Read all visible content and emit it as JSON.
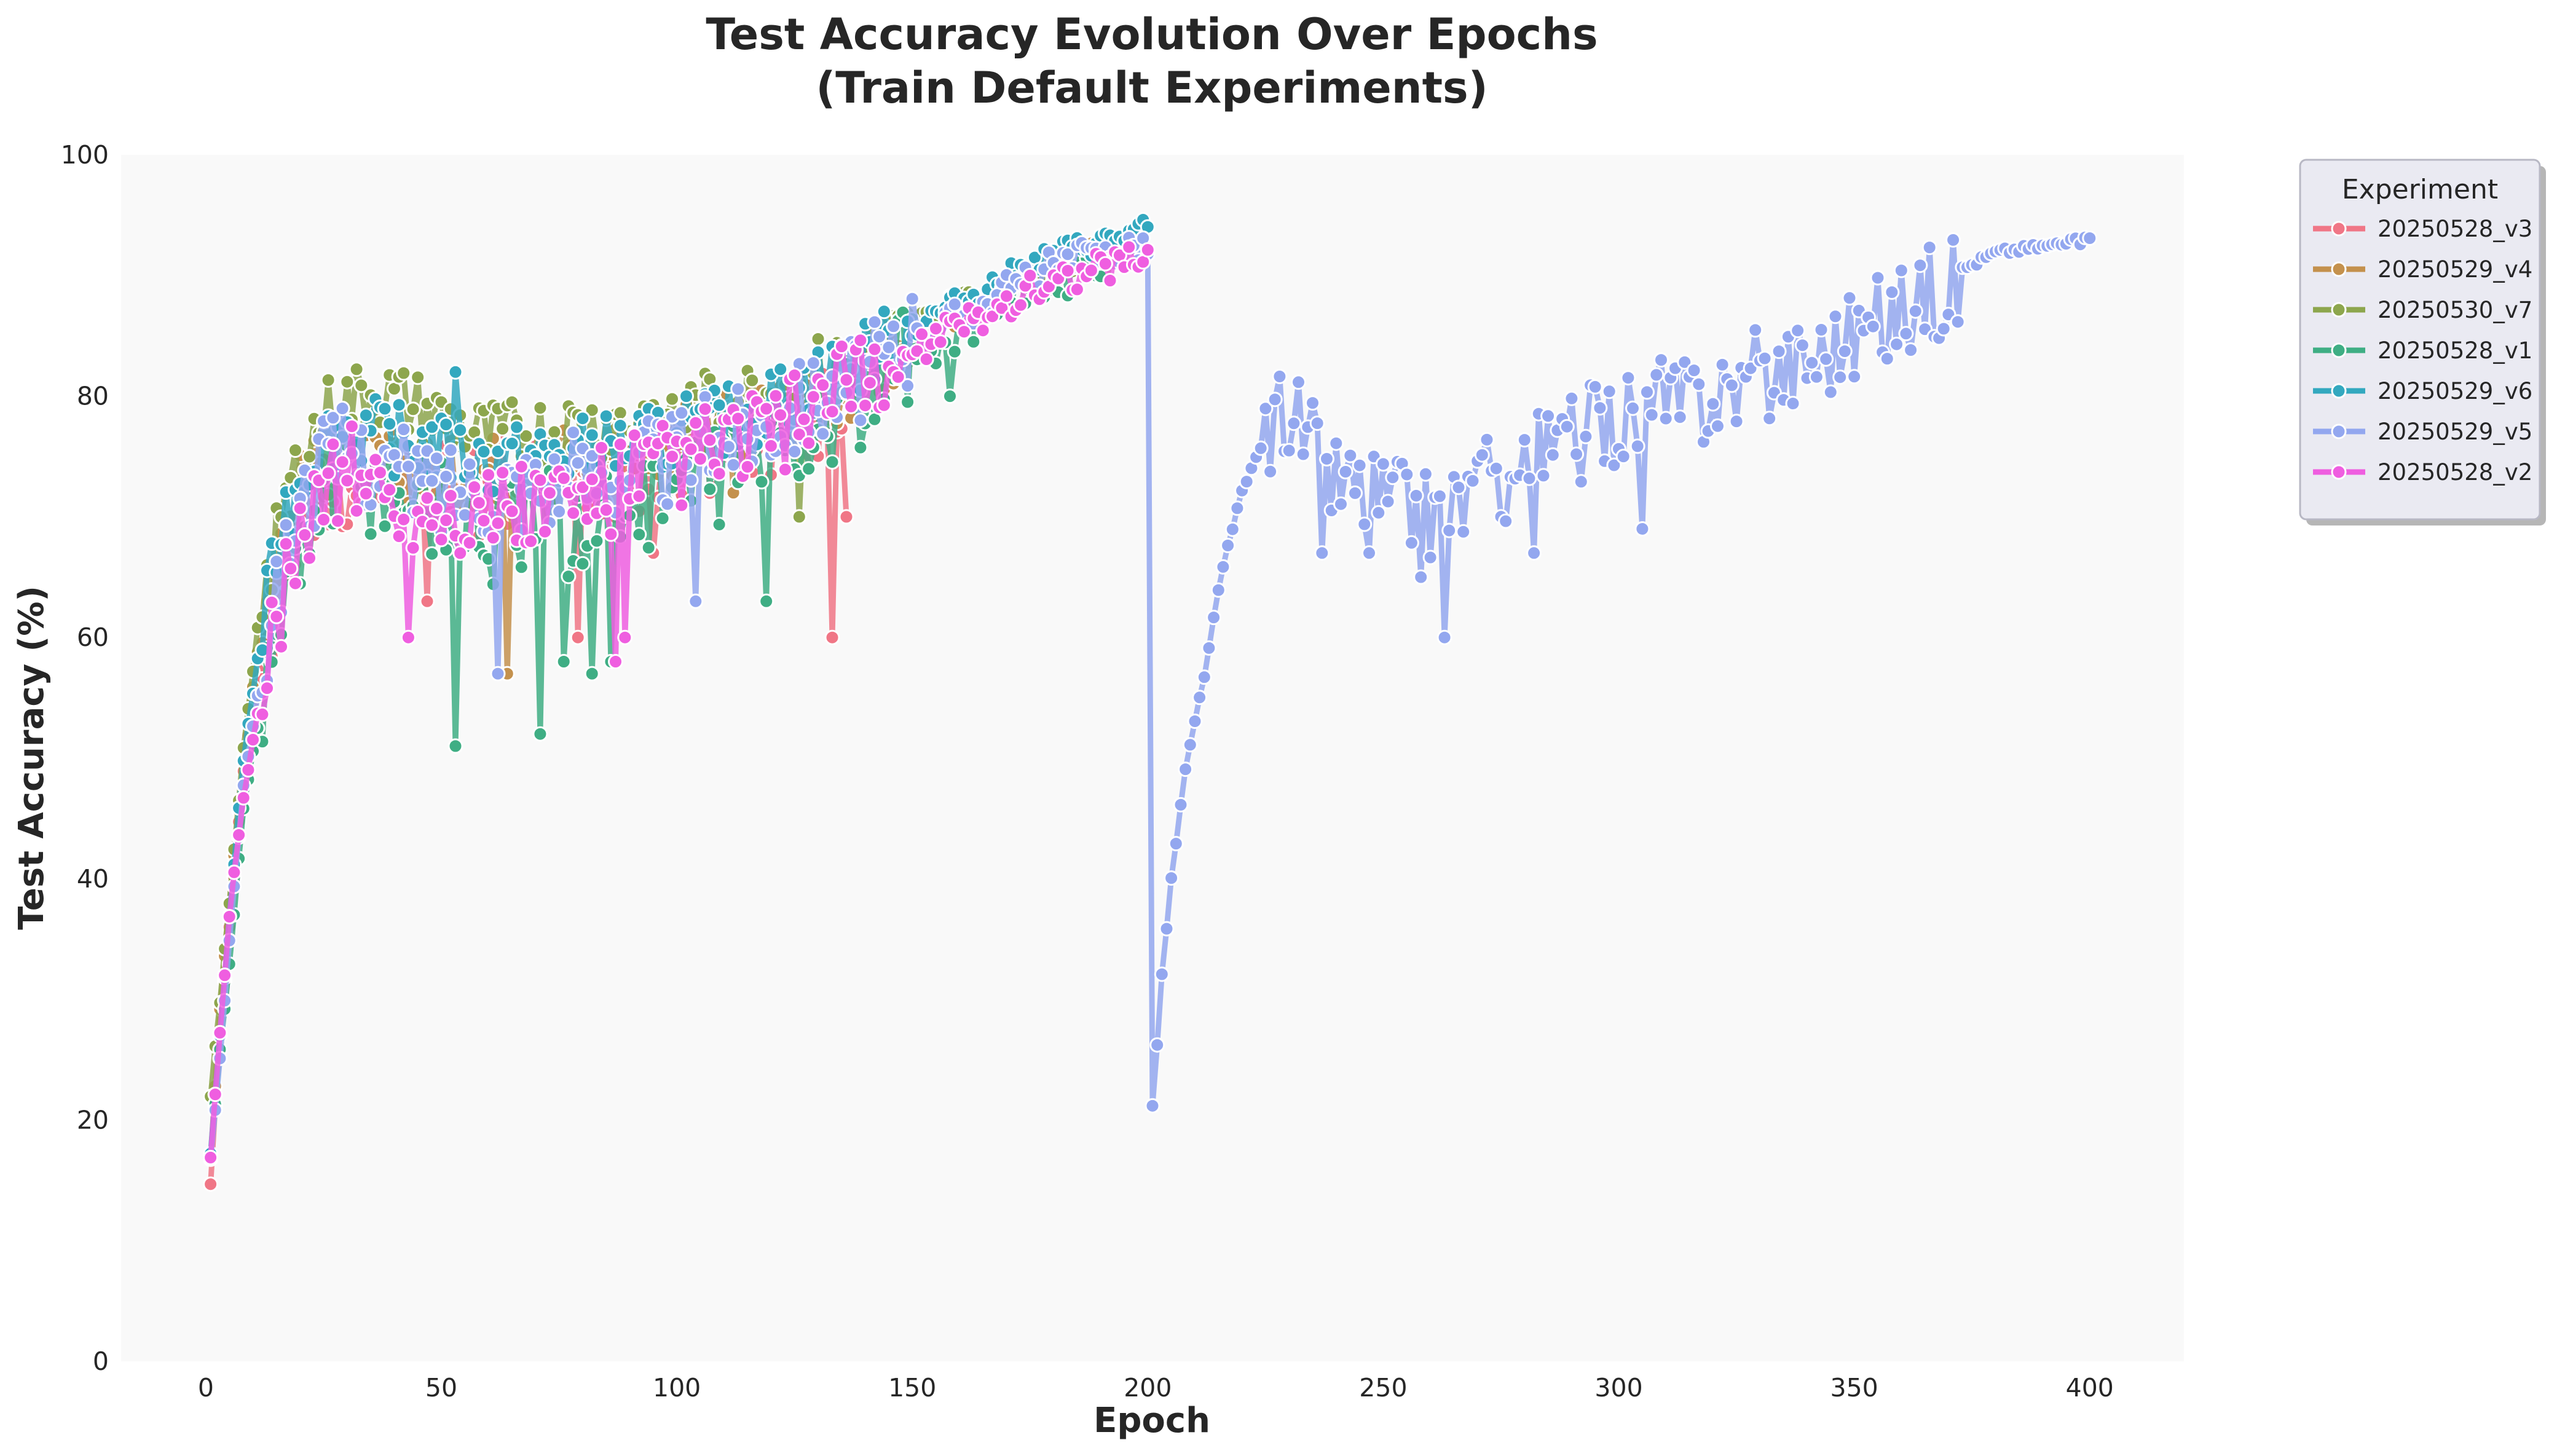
{
  "chart_data": {
    "type": "line",
    "title_line1": "Test Accuracy Evolution Over Epochs",
    "title_line2": "(Train Default Experiments)",
    "xlabel": "Epoch",
    "ylabel": "Test Accuracy (%)",
    "xlim": [
      -18,
      420
    ],
    "ylim": [
      0,
      100
    ],
    "xticks": [
      0,
      50,
      100,
      150,
      200,
      250,
      300,
      350,
      400
    ],
    "yticks": [
      0,
      20,
      40,
      60,
      80,
      100
    ],
    "grid": false,
    "legend_title": "Experiment",
    "legend_position": "outside-top-right",
    "markers": "circle",
    "series": [
      {
        "name": "20250528_v3",
        "color": "#f07686",
        "epochs": 136,
        "anchors": [
          [
            1,
            15
          ],
          [
            3,
            27
          ],
          [
            5,
            36
          ],
          [
            8,
            49
          ],
          [
            12,
            60
          ],
          [
            16,
            66
          ],
          [
            20,
            70
          ],
          [
            25,
            73
          ],
          [
            30,
            74
          ],
          [
            40,
            74
          ],
          [
            60,
            73
          ],
          [
            80,
            74
          ],
          [
            100,
            76
          ],
          [
            120,
            78
          ],
          [
            136,
            80
          ]
        ],
        "spread": 8,
        "dips": [
          [
            47,
            63
          ],
          [
            79,
            60
          ],
          [
            95,
            67
          ],
          [
            133,
            60
          ],
          [
            136,
            70
          ]
        ]
      },
      {
        "name": "20250529_v4",
        "color": "#c4914d",
        "epochs": 196,
        "anchors": [
          [
            1,
            17
          ],
          [
            3,
            29
          ],
          [
            5,
            38
          ],
          [
            8,
            50
          ],
          [
            12,
            62
          ],
          [
            16,
            69
          ],
          [
            20,
            73
          ],
          [
            25,
            75
          ],
          [
            30,
            76
          ],
          [
            50,
            74
          ],
          [
            80,
            76
          ],
          [
            100,
            77
          ],
          [
            120,
            79
          ],
          [
            140,
            82
          ],
          [
            160,
            87
          ],
          [
            180,
            91
          ],
          [
            196,
            93
          ]
        ],
        "spread": 6,
        "dips": [
          [
            64,
            57
          ],
          [
            112,
            72
          ]
        ]
      },
      {
        "name": "20250530_v7",
        "color": "#8da64d",
        "epochs": 196,
        "anchors": [
          [
            1,
            22
          ],
          [
            3,
            30
          ],
          [
            5,
            38
          ],
          [
            8,
            51
          ],
          [
            12,
            64
          ],
          [
            16,
            71
          ],
          [
            20,
            75
          ],
          [
            25,
            79
          ],
          [
            30,
            80
          ],
          [
            36,
            81
          ],
          [
            60,
            77
          ],
          [
            80,
            78
          ],
          [
            100,
            79
          ],
          [
            120,
            81
          ],
          [
            140,
            84
          ],
          [
            160,
            88
          ],
          [
            180,
            91
          ],
          [
            196,
            92
          ]
        ],
        "spread": 6,
        "dips": [
          [
            126,
            70
          ]
        ]
      },
      {
        "name": "20250528_v1",
        "color": "#3fae84",
        "epochs": 196,
        "anchors": [
          [
            1,
            17
          ],
          [
            3,
            26
          ],
          [
            5,
            33
          ],
          [
            8,
            46
          ],
          [
            12,
            55
          ],
          [
            16,
            63
          ],
          [
            20,
            68
          ],
          [
            25,
            74
          ],
          [
            30,
            75
          ],
          [
            40,
            74
          ],
          [
            60,
            70
          ],
          [
            80,
            71
          ],
          [
            100,
            74
          ],
          [
            120,
            77
          ],
          [
            140,
            81
          ],
          [
            160,
            86
          ],
          [
            180,
            90
          ],
          [
            196,
            92
          ]
        ],
        "spread": 10,
        "dips": [
          [
            53,
            51
          ],
          [
            71,
            52
          ],
          [
            82,
            57
          ],
          [
            76,
            58
          ],
          [
            86,
            58
          ],
          [
            119,
            63
          ],
          [
            158,
            80
          ]
        ]
      },
      {
        "name": "20250529_v6",
        "color": "#33a8bf",
        "epochs": 200,
        "anchors": [
          [
            1,
            17
          ],
          [
            3,
            27
          ],
          [
            5,
            37
          ],
          [
            8,
            50
          ],
          [
            12,
            61
          ],
          [
            16,
            70
          ],
          [
            20,
            74
          ],
          [
            25,
            77
          ],
          [
            30,
            78
          ],
          [
            40,
            77
          ],
          [
            60,
            75
          ],
          [
            80,
            76
          ],
          [
            100,
            77
          ],
          [
            120,
            80
          ],
          [
            140,
            84
          ],
          [
            160,
            88
          ],
          [
            180,
            92
          ],
          [
            200,
            94
          ]
        ],
        "spread": 6,
        "dips": [
          [
            53,
            82
          ],
          [
            102,
            80
          ]
        ]
      },
      {
        "name": "20250529_v5",
        "color": "#93a7ef",
        "epochs": 400,
        "anchors": [
          [
            1,
            17
          ],
          [
            3,
            25
          ],
          [
            5,
            35
          ],
          [
            8,
            48
          ],
          [
            12,
            58
          ],
          [
            16,
            66
          ],
          [
            20,
            72
          ],
          [
            25,
            75
          ],
          [
            30,
            76
          ],
          [
            50,
            73
          ],
          [
            80,
            74
          ],
          [
            100,
            76
          ],
          [
            120,
            79
          ],
          [
            140,
            83
          ],
          [
            160,
            87
          ],
          [
            180,
            91
          ],
          [
            199,
            93
          ],
          [
            200,
            92
          ],
          [
            201,
            21
          ],
          [
            203,
            32
          ],
          [
            205,
            40
          ],
          [
            208,
            49
          ],
          [
            212,
            57
          ],
          [
            216,
            66
          ],
          [
            220,
            72
          ],
          [
            225,
            77
          ],
          [
            230,
            80
          ],
          [
            240,
            74
          ],
          [
            260,
            71
          ],
          [
            280,
            75
          ],
          [
            300,
            79
          ],
          [
            320,
            81
          ],
          [
            340,
            84
          ],
          [
            360,
            88
          ],
          [
            380,
            92
          ],
          [
            400,
            93
          ]
        ],
        "spread": 8,
        "dips": [
          [
            62,
            57
          ],
          [
            104,
            63
          ],
          [
            237,
            67
          ],
          [
            247,
            67
          ],
          [
            258,
            65
          ],
          [
            263,
            60
          ],
          [
            282,
            67
          ],
          [
            305,
            69
          ]
        ]
      },
      {
        "name": "20250528_v2",
        "color": "#ef5ee0",
        "epochs": 200,
        "anchors": [
          [
            1,
            17
          ],
          [
            3,
            27
          ],
          [
            5,
            37
          ],
          [
            8,
            47
          ],
          [
            12,
            56
          ],
          [
            16,
            64
          ],
          [
            20,
            70
          ],
          [
            25,
            73
          ],
          [
            30,
            75
          ],
          [
            40,
            72
          ],
          [
            60,
            71
          ],
          [
            80,
            72
          ],
          [
            100,
            75
          ],
          [
            120,
            78
          ],
          [
            140,
            82
          ],
          [
            160,
            86
          ],
          [
            180,
            90
          ],
          [
            200,
            92
          ]
        ],
        "spread": 8,
        "dips": [
          [
            43,
            60
          ],
          [
            87,
            58
          ],
          [
            89,
            60
          ]
        ]
      }
    ]
  }
}
